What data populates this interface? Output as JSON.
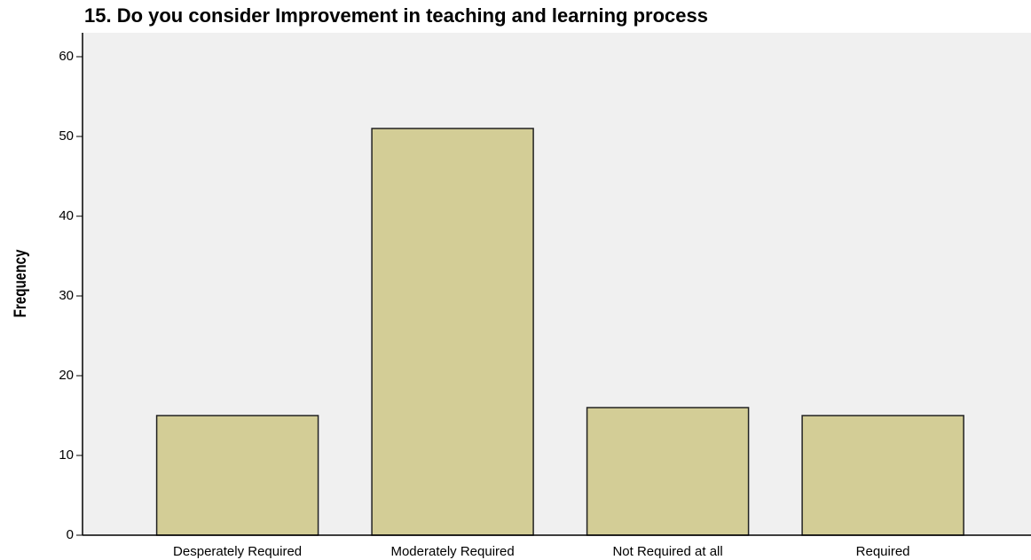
{
  "chart_data": {
    "type": "bar",
    "title": "15. Do you consider Improvement in teaching and learning process",
    "y_label": "Frequency",
    "categories": [
      "Desperately Required",
      "Moderately Required",
      "Not Required at all",
      "Required"
    ],
    "values": [
      15,
      51,
      16,
      15
    ],
    "color": "#d3cd96",
    "ylim": [
      0,
      63
    ],
    "yticks": [
      0,
      10,
      20,
      30,
      40,
      50,
      60
    ],
    "grid": false
  }
}
